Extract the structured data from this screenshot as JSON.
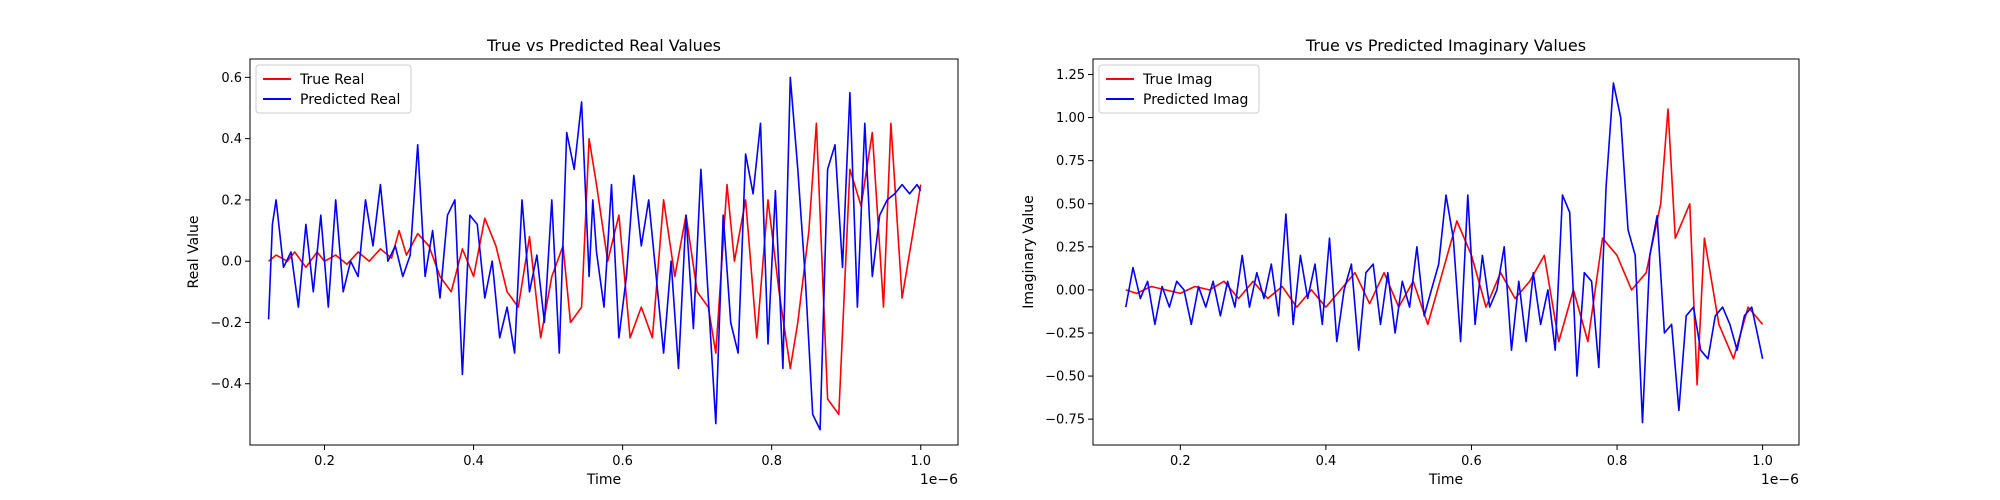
{
  "chart_data": [
    {
      "type": "line",
      "title": "True vs Predicted Real Values",
      "xlabel": "Time",
      "ylabel": "Real Value",
      "x_offset_label": "1e−6",
      "xlim": [
        0.1,
        1.05
      ],
      "ylim": [
        -0.6,
        0.66
      ],
      "xticks": [
        0.2,
        0.4,
        0.6,
        0.8,
        1.0
      ],
      "xtick_labels": [
        "0.2",
        "0.4",
        "0.6",
        "0.8",
        "1.0"
      ],
      "yticks": [
        -0.4,
        -0.2,
        0.0,
        0.2,
        0.4,
        0.6
      ],
      "ytick_labels": [
        "−0.4",
        "−0.2",
        "0.0",
        "0.2",
        "0.4",
        "0.6"
      ],
      "grid": false,
      "legend_position": "top-left",
      "series": [
        {
          "name": "True Real",
          "color": "#ff0000",
          "x": [
            0.125,
            0.135,
            0.15,
            0.16,
            0.175,
            0.19,
            0.2,
            0.215,
            0.23,
            0.245,
            0.26,
            0.275,
            0.29,
            0.3,
            0.31,
            0.325,
            0.34,
            0.355,
            0.37,
            0.385,
            0.4,
            0.415,
            0.43,
            0.445,
            0.46,
            0.475,
            0.49,
            0.505,
            0.52,
            0.53,
            0.545,
            0.555,
            0.565,
            0.58,
            0.595,
            0.61,
            0.625,
            0.64,
            0.655,
            0.67,
            0.685,
            0.7,
            0.715,
            0.725,
            0.74,
            0.75,
            0.765,
            0.78,
            0.795,
            0.81,
            0.825,
            0.835,
            0.85,
            0.86,
            0.875,
            0.89,
            0.905,
            0.92,
            0.935,
            0.95,
            0.96,
            0.975,
            0.99,
            1.0
          ],
          "y": [
            0.0,
            0.02,
            0.0,
            0.03,
            -0.02,
            0.03,
            0.0,
            0.02,
            -0.01,
            0.03,
            0.0,
            0.04,
            0.01,
            0.1,
            0.02,
            0.09,
            0.05,
            -0.05,
            -0.1,
            0.04,
            -0.05,
            0.14,
            0.05,
            -0.1,
            -0.15,
            0.08,
            -0.25,
            -0.05,
            0.05,
            -0.2,
            -0.15,
            0.4,
            0.25,
            0.0,
            0.15,
            -0.25,
            -0.15,
            -0.25,
            0.2,
            -0.05,
            0.15,
            -0.1,
            -0.15,
            -0.3,
            0.25,
            0.0,
            0.2,
            -0.25,
            0.2,
            -0.1,
            -0.35,
            -0.2,
            0.1,
            0.45,
            -0.45,
            -0.5,
            0.3,
            0.18,
            0.42,
            -0.15,
            0.45,
            -0.12,
            0.1,
            0.25
          ]
        },
        {
          "name": "Predicted Real",
          "color": "#0000ff",
          "x": [
            0.125,
            0.13,
            0.135,
            0.145,
            0.155,
            0.165,
            0.175,
            0.185,
            0.195,
            0.205,
            0.215,
            0.225,
            0.235,
            0.245,
            0.255,
            0.265,
            0.275,
            0.285,
            0.295,
            0.305,
            0.315,
            0.325,
            0.335,
            0.345,
            0.355,
            0.365,
            0.375,
            0.385,
            0.395,
            0.405,
            0.415,
            0.425,
            0.435,
            0.445,
            0.455,
            0.465,
            0.475,
            0.485,
            0.495,
            0.505,
            0.515,
            0.525,
            0.535,
            0.545,
            0.555,
            0.56,
            0.565,
            0.575,
            0.585,
            0.595,
            0.605,
            0.615,
            0.625,
            0.635,
            0.645,
            0.655,
            0.665,
            0.675,
            0.685,
            0.695,
            0.705,
            0.715,
            0.725,
            0.735,
            0.745,
            0.755,
            0.765,
            0.775,
            0.785,
            0.795,
            0.805,
            0.815,
            0.825,
            0.835,
            0.845,
            0.855,
            0.865,
            0.875,
            0.885,
            0.895,
            0.905,
            0.915,
            0.925,
            0.935,
            0.945,
            0.955,
            0.965,
            0.975,
            0.985,
            0.995,
            1.0
          ],
          "y": [
            -0.19,
            0.12,
            0.2,
            -0.02,
            0.03,
            -0.15,
            0.12,
            -0.1,
            0.15,
            -0.15,
            0.2,
            -0.1,
            0.0,
            -0.05,
            0.2,
            0.05,
            0.25,
            0.0,
            0.05,
            -0.05,
            0.02,
            0.38,
            -0.05,
            0.1,
            -0.12,
            0.15,
            0.2,
            -0.37,
            0.15,
            0.12,
            -0.12,
            0.0,
            -0.25,
            -0.15,
            -0.3,
            0.2,
            -0.1,
            0.02,
            -0.2,
            0.2,
            -0.3,
            0.42,
            0.3,
            0.52,
            -0.05,
            0.2,
            0.03,
            -0.15,
            0.25,
            -0.25,
            -0.05,
            0.28,
            0.05,
            0.2,
            -0.05,
            -0.3,
            0.0,
            -0.35,
            0.15,
            -0.22,
            0.3,
            -0.12,
            -0.53,
            0.15,
            -0.2,
            -0.3,
            0.35,
            0.22,
            0.45,
            -0.27,
            0.23,
            -0.35,
            0.6,
            0.3,
            -0.05,
            -0.5,
            -0.55,
            0.3,
            0.38,
            -0.02,
            0.55,
            -0.15,
            0.45,
            -0.05,
            0.15,
            0.2,
            0.22,
            0.25,
            0.22,
            0.25,
            0.23
          ]
        }
      ]
    },
    {
      "type": "line",
      "title": "True vs Predicted Imaginary Values",
      "xlabel": "Time",
      "ylabel": "Imaginary Value",
      "x_offset_label": "1e−6",
      "xlim": [
        0.08,
        1.05
      ],
      "ylim": [
        -0.9,
        1.34
      ],
      "xticks": [
        0.2,
        0.4,
        0.6,
        0.8,
        1.0
      ],
      "xtick_labels": [
        "0.2",
        "0.4",
        "0.6",
        "0.8",
        "1.0"
      ],
      "yticks": [
        -0.75,
        -0.5,
        -0.25,
        0.0,
        0.25,
        0.5,
        0.75,
        1.0,
        1.25
      ],
      "ytick_labels": [
        "−0.75",
        "−0.50",
        "−0.25",
        "0.00",
        "0.25",
        "0.50",
        "0.75",
        "1.00",
        "1.25"
      ],
      "grid": false,
      "legend_position": "top-left",
      "series": [
        {
          "name": "True Imag",
          "color": "#ff0000",
          "x": [
            0.125,
            0.14,
            0.16,
            0.18,
            0.2,
            0.22,
            0.24,
            0.26,
            0.28,
            0.3,
            0.32,
            0.34,
            0.36,
            0.38,
            0.4,
            0.42,
            0.44,
            0.46,
            0.48,
            0.5,
            0.52,
            0.54,
            0.56,
            0.58,
            0.6,
            0.62,
            0.64,
            0.66,
            0.68,
            0.7,
            0.72,
            0.74,
            0.76,
            0.78,
            0.8,
            0.82,
            0.84,
            0.86,
            0.87,
            0.88,
            0.9,
            0.91,
            0.92,
            0.94,
            0.96,
            0.98,
            1.0
          ],
          "y": [
            0.0,
            -0.02,
            0.02,
            0.0,
            -0.02,
            0.02,
            0.0,
            0.05,
            -0.05,
            0.05,
            -0.05,
            0.02,
            -0.1,
            0.0,
            -0.1,
            0.0,
            0.1,
            -0.08,
            0.1,
            -0.1,
            0.05,
            -0.2,
            0.1,
            0.4,
            0.2,
            -0.1,
            0.1,
            -0.05,
            0.05,
            0.2,
            -0.3,
            0.0,
            -0.3,
            0.3,
            0.2,
            0.0,
            0.1,
            0.5,
            1.05,
            0.3,
            0.5,
            -0.55,
            0.3,
            -0.2,
            -0.4,
            -0.1,
            -0.2
          ]
        },
        {
          "name": "Predicted Imag",
          "color": "#0000ff",
          "x": [
            0.125,
            0.135,
            0.145,
            0.155,
            0.165,
            0.175,
            0.185,
            0.195,
            0.205,
            0.215,
            0.225,
            0.235,
            0.245,
            0.255,
            0.265,
            0.275,
            0.285,
            0.295,
            0.305,
            0.315,
            0.325,
            0.335,
            0.345,
            0.355,
            0.365,
            0.375,
            0.385,
            0.395,
            0.405,
            0.415,
            0.425,
            0.435,
            0.445,
            0.455,
            0.465,
            0.475,
            0.485,
            0.495,
            0.505,
            0.515,
            0.525,
            0.535,
            0.545,
            0.555,
            0.565,
            0.575,
            0.585,
            0.595,
            0.605,
            0.615,
            0.625,
            0.635,
            0.645,
            0.655,
            0.665,
            0.675,
            0.685,
            0.695,
            0.705,
            0.715,
            0.725,
            0.735,
            0.745,
            0.755,
            0.765,
            0.775,
            0.785,
            0.795,
            0.805,
            0.815,
            0.825,
            0.835,
            0.845,
            0.855,
            0.865,
            0.875,
            0.885,
            0.895,
            0.905,
            0.915,
            0.925,
            0.935,
            0.945,
            0.955,
            0.965,
            0.975,
            0.985,
            0.995,
            1.0
          ],
          "y": [
            -0.1,
            0.13,
            -0.05,
            0.05,
            -0.2,
            0.02,
            -0.1,
            0.05,
            0.0,
            -0.2,
            0.02,
            -0.1,
            0.05,
            -0.15,
            0.05,
            -0.1,
            0.2,
            -0.1,
            0.1,
            -0.05,
            0.15,
            -0.15,
            0.44,
            -0.2,
            0.2,
            -0.05,
            0.15,
            -0.2,
            0.3,
            -0.3,
            0.0,
            0.15,
            -0.35,
            0.1,
            0.15,
            -0.2,
            0.1,
            -0.25,
            0.05,
            -0.1,
            0.25,
            -0.15,
            0.0,
            0.15,
            0.55,
            0.3,
            -0.3,
            0.55,
            -0.2,
            0.2,
            -0.1,
            0.0,
            0.25,
            -0.35,
            0.05,
            -0.3,
            0.1,
            -0.2,
            0.0,
            -0.35,
            0.55,
            0.45,
            -0.5,
            0.1,
            0.05,
            -0.45,
            0.6,
            1.2,
            1.0,
            0.35,
            0.2,
            -0.77,
            0.2,
            0.43,
            -0.25,
            -0.2,
            -0.7,
            -0.15,
            -0.1,
            -0.35,
            -0.4,
            -0.15,
            -0.1,
            -0.2,
            -0.35,
            -0.15,
            -0.1,
            -0.3,
            -0.4
          ]
        }
      ]
    }
  ]
}
